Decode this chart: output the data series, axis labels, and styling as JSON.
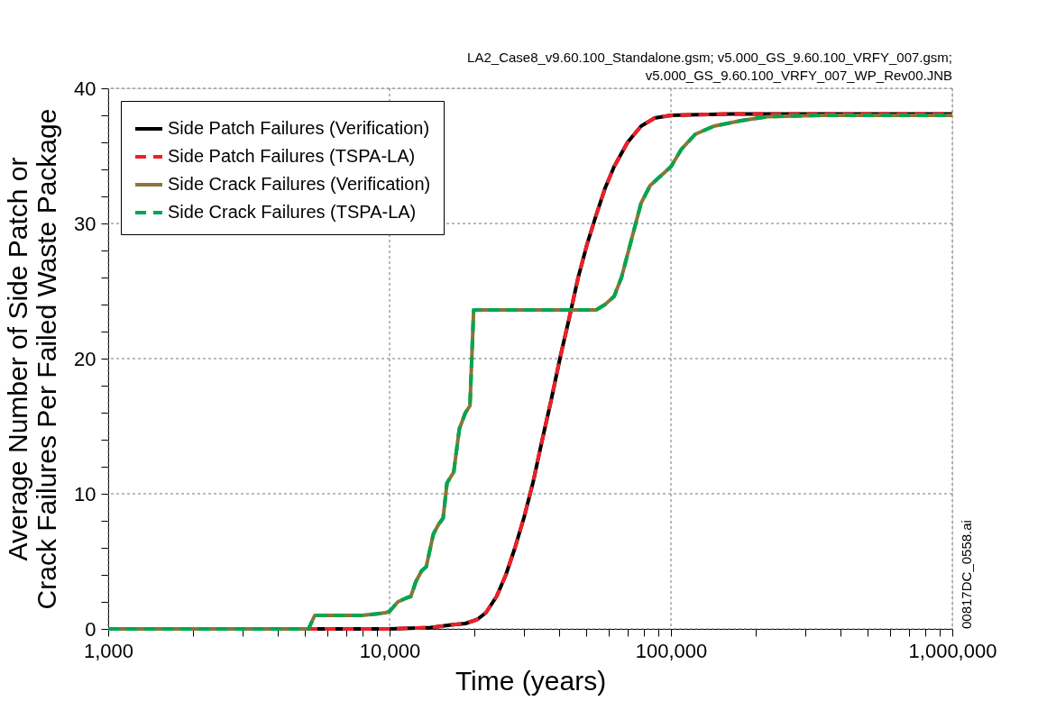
{
  "chart_data": {
    "type": "line",
    "xlabel": "Time (years)",
    "ylabel": "Average Number of Side Patch or\nCrack Failures Per Failed Waste Package",
    "log": "x",
    "xlim": [
      1000,
      1000000
    ],
    "ylim": [
      0,
      40
    ],
    "xticks": [
      {
        "value": 1000,
        "label": "1,000"
      },
      {
        "value": 2000,
        "label": null
      },
      {
        "value": 3000,
        "label": null
      },
      {
        "value": 4000,
        "label": null
      },
      {
        "value": 5000,
        "label": null
      },
      {
        "value": 6000,
        "label": null
      },
      {
        "value": 7000,
        "label": null
      },
      {
        "value": 8000,
        "label": null
      },
      {
        "value": 9000,
        "label": null
      },
      {
        "value": 10000,
        "label": "10,000"
      },
      {
        "value": 20000,
        "label": null
      },
      {
        "value": 30000,
        "label": null
      },
      {
        "value": 40000,
        "label": null
      },
      {
        "value": 50000,
        "label": null
      },
      {
        "value": 60000,
        "label": null
      },
      {
        "value": 70000,
        "label": null
      },
      {
        "value": 80000,
        "label": null
      },
      {
        "value": 90000,
        "label": null
      },
      {
        "value": 100000,
        "label": "100,000"
      },
      {
        "value": 200000,
        "label": null
      },
      {
        "value": 300000,
        "label": null
      },
      {
        "value": 400000,
        "label": null
      },
      {
        "value": 500000,
        "label": null
      },
      {
        "value": 600000,
        "label": null
      },
      {
        "value": 700000,
        "label": null
      },
      {
        "value": 800000,
        "label": null
      },
      {
        "value": 900000,
        "label": null
      },
      {
        "value": 1000000,
        "label": "1,000,000"
      }
    ],
    "yticks": [
      0,
      {
        "value": 2,
        "label": null
      },
      {
        "value": 4,
        "label": null
      },
      {
        "value": 6,
        "label": null
      },
      {
        "value": 8,
        "label": null
      },
      10,
      {
        "value": 12,
        "label": null
      },
      {
        "value": 14,
        "label": null
      },
      {
        "value": 16,
        "label": null
      },
      {
        "value": 18,
        "label": null
      },
      20,
      {
        "value": 22,
        "label": null
      },
      {
        "value": 24,
        "label": null
      },
      {
        "value": 26,
        "label": null
      },
      {
        "value": 28,
        "label": null
      },
      30,
      {
        "value": 32,
        "label": null
      },
      {
        "value": 34,
        "label": null
      },
      {
        "value": 36,
        "label": null
      },
      {
        "value": 38,
        "label": null
      },
      40
    ],
    "grid": true,
    "legend": "top left",
    "annotations": [
      "LA2_Case8_v9.60.100_Standalone.gsm; v5.000_GS_9.60.100_VRFY_007.gsm;",
      "v5.000_GS_9.60.100_VRFY_007_WP_Rev00.JNB",
      "00817DC_0558.ai"
    ],
    "series": [
      {
        "name": "Side Patch Failures (Verification)",
        "color": "#000000",
        "line_style": "solid",
        "x": [
          1000,
          10000,
          14000,
          16600,
          18600,
          20500,
          22000,
          24000,
          25900,
          27900,
          30100,
          32400,
          34800,
          37500,
          40400,
          43500,
          46800,
          50400,
          54200,
          58300,
          62800,
          70100,
          78300,
          87500,
          100000,
          164000,
          1000000
        ],
        "values": [
          0,
          0,
          0.1,
          0.3,
          0.4,
          0.7,
          1.2,
          2.4,
          4,
          6,
          8.3,
          10.9,
          13.9,
          16.9,
          20.1,
          23,
          26,
          28.5,
          30.6,
          32.6,
          34.2,
          36,
          37.2,
          37.8,
          38,
          38.1,
          38.1
        ]
      },
      {
        "name": "Side Patch Failures (TSPA-LA)",
        "color": "#ee2028",
        "line_style": "dashed",
        "x": [
          1000,
          10000,
          14000,
          16600,
          18600,
          20500,
          22000,
          24000,
          25900,
          27900,
          30100,
          32400,
          34800,
          37500,
          40400,
          43500,
          46800,
          50400,
          54200,
          58300,
          62800,
          70100,
          78300,
          87500,
          100000,
          164000,
          1000000
        ],
        "values": [
          0,
          0,
          0.1,
          0.3,
          0.4,
          0.7,
          1.2,
          2.4,
          4,
          6,
          8.3,
          10.9,
          13.9,
          16.9,
          20.1,
          23,
          26,
          28.5,
          30.6,
          32.6,
          34.2,
          36,
          37.2,
          37.8,
          38,
          38.1,
          38.1
        ]
      },
      {
        "name": "Side Crack Failures (Verification)",
        "color": "#8b7536",
        "line_style": "solid",
        "x": [
          1000,
          5150,
          5420,
          7960,
          8890,
          9700,
          10000,
          10700,
          11500,
          11900,
          12400,
          13000,
          13500,
          14300,
          14900,
          15500,
          16000,
          16900,
          17700,
          18600,
          19300,
          19900,
          54200,
          58300,
          62800,
          66700,
          72800,
          78300,
          84300,
          100000,
          109000,
          122000,
          142000,
          177000,
          220000,
          343000,
          1000000
        ],
        "values": [
          0,
          0,
          1,
          1,
          1.1,
          1.2,
          1.3,
          2,
          2.3,
          2.4,
          3.5,
          4.3,
          4.6,
          7,
          7.7,
          8.2,
          10.8,
          11.6,
          14.8,
          16,
          16.5,
          23.6,
          23.6,
          24,
          24.6,
          26,
          29,
          31.5,
          32.8,
          34.2,
          35.5,
          36.6,
          37.2,
          37.6,
          37.9,
          38,
          38
        ]
      },
      {
        "name": "Side Crack Failures (TSPA-LA)",
        "color": "#00a651",
        "line_style": "dashed",
        "x": [
          1000,
          5150,
          5420,
          7960,
          8890,
          9700,
          10000,
          10700,
          11500,
          11900,
          12400,
          13000,
          13500,
          14300,
          14900,
          15500,
          16000,
          16900,
          17700,
          18600,
          19300,
          19900,
          54200,
          58300,
          62800,
          66700,
          72800,
          78300,
          84300,
          100000,
          109000,
          122000,
          142000,
          177000,
          220000,
          343000,
          1000000
        ],
        "values": [
          0,
          0,
          1,
          1,
          1.1,
          1.2,
          1.3,
          2,
          2.3,
          2.4,
          3.5,
          4.3,
          4.6,
          7,
          7.7,
          8.2,
          10.8,
          11.6,
          14.8,
          16,
          16.5,
          23.6,
          23.6,
          24,
          24.6,
          26,
          29,
          31.5,
          32.8,
          34.2,
          35.5,
          36.6,
          37.2,
          37.6,
          37.9,
          38,
          38
        ]
      }
    ]
  }
}
